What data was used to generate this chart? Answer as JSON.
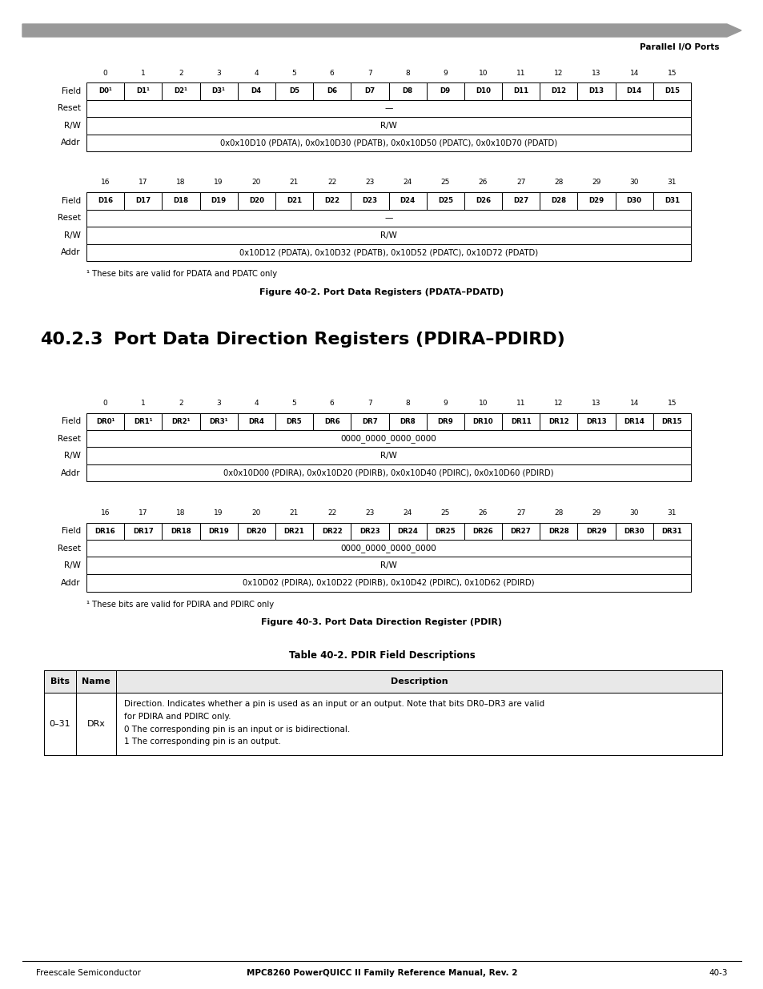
{
  "page_width": 9.54,
  "page_height": 12.35,
  "bg_color": "#ffffff",
  "header_bar_color": "#999999",
  "header_text": "Parallel I/O Ports",
  "fig1_title": "Figure 40-2. Port Data Registers (PDATA–PDATD)",
  "fig1_note": "¹ These bits are valid for PDATA and PDATC only",
  "fig2_title": "Figure 40-3. Port Data Direction Register (PDIR)",
  "fig2_note": "¹ These bits are valid for PDIRA and PDIRC only",
  "section_num": "40.2.3",
  "section_title": "Port Data Direction Registers (PDIRA–PDIRD)",
  "table_title": "Table 40-2. PDIR Field Descriptions",
  "footer_center": "MPC8260 PowerQUICC II Family Reference Manual, Rev. 2",
  "footer_left": "Freescale Semiconductor",
  "footer_right": "40-3",
  "pdata_row1_cols": [
    "D0¹",
    "D1¹",
    "D2¹",
    "D3¹",
    "D4",
    "D5",
    "D6",
    "D7",
    "D8",
    "D9",
    "D10",
    "D11",
    "D12",
    "D13",
    "D14",
    "D15"
  ],
  "pdata_row1_nums": [
    "0",
    "1",
    "2",
    "3",
    "4",
    "5",
    "6",
    "7",
    "8",
    "9",
    "10",
    "11",
    "12",
    "13",
    "14",
    "15"
  ],
  "pdata_row1_reset": "—",
  "pdata_row1_rw": "R/W",
  "pdata_row1_addr": "0x0x10D10 (PDATA), 0x0x10D30 (PDATB), 0x0x10D50 (PDATC), 0x0x10D70 (PDATD)",
  "pdata_row2_cols": [
    "D16",
    "D17",
    "D18",
    "D19",
    "D20",
    "D21",
    "D22",
    "D23",
    "D24",
    "D25",
    "D26",
    "D27",
    "D28",
    "D29",
    "D30",
    "D31"
  ],
  "pdata_row2_nums": [
    "16",
    "17",
    "18",
    "19",
    "20",
    "21",
    "22",
    "23",
    "24",
    "25",
    "26",
    "27",
    "28",
    "29",
    "30",
    "31"
  ],
  "pdata_row2_reset": "—",
  "pdata_row2_rw": "R/W",
  "pdata_row2_addr": "0x10D12 (PDATA), 0x10D32 (PDATB), 0x10D52 (PDATC), 0x10D72 (PDATD)",
  "pdir_row1_cols": [
    "DR0¹",
    "DR1¹",
    "DR2¹",
    "DR3¹",
    "DR4",
    "DR5",
    "DR6",
    "DR7",
    "DR8",
    "DR9",
    "DR10",
    "DR11",
    "DR12",
    "DR13",
    "DR14",
    "DR15"
  ],
  "pdir_row1_nums": [
    "0",
    "1",
    "2",
    "3",
    "4",
    "5",
    "6",
    "7",
    "8",
    "9",
    "10",
    "11",
    "12",
    "13",
    "14",
    "15"
  ],
  "pdir_row1_reset": "0000_0000_0000_0000",
  "pdir_row1_rw": "R/W",
  "pdir_row1_addr": "0x0x10D00 (PDIRA), 0x0x10D20 (PDIRB), 0x0x10D40 (PDIRC), 0x0x10D60 (PDIRD)",
  "pdir_row2_cols": [
    "DR16",
    "DR17",
    "DR18",
    "DR19",
    "DR20",
    "DR21",
    "DR22",
    "DR23",
    "DR24",
    "DR25",
    "DR26",
    "DR27",
    "DR28",
    "DR29",
    "DR30",
    "DR31"
  ],
  "pdir_row2_nums": [
    "16",
    "17",
    "18",
    "19",
    "20",
    "21",
    "22",
    "23",
    "24",
    "25",
    "26",
    "27",
    "28",
    "29",
    "30",
    "31"
  ],
  "pdir_row2_reset": "0000_0000_0000_0000",
  "pdir_row2_rw": "R/W",
  "pdir_row2_addr": "0x10D02 (PDIRA), 0x10D22 (PDIRB), 0x10D42 (PDIRC), 0x10D62 (PDIRD)",
  "table_row": {
    "bits": "0–31",
    "name": "DRx",
    "desc_line1": "Direction. Indicates whether a pin is used as an input or an output. Note that bits DR0–DR3 are valid",
    "desc_line2": "for PDIRA and PDIRC only.",
    "desc_line3": "0 The corresponding pin is an input or is bidirectional.",
    "desc_line4": "1 The corresponding pin is an output."
  }
}
